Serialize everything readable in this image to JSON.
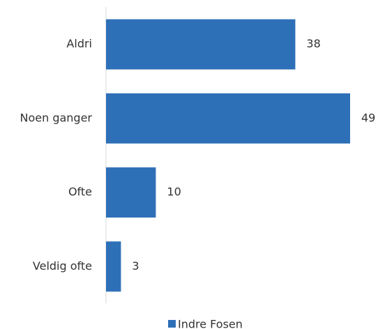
{
  "chart_data": {
    "type": "bar",
    "orientation": "horizontal",
    "categories": [
      "Aldri",
      "Noen ganger",
      "Ofte",
      "Veldig ofte"
    ],
    "series": [
      {
        "name": "Indre Fosen",
        "color": "#2e70b8",
        "values": [
          38,
          49,
          10,
          3
        ]
      }
    ],
    "legend": "bottom"
  }
}
